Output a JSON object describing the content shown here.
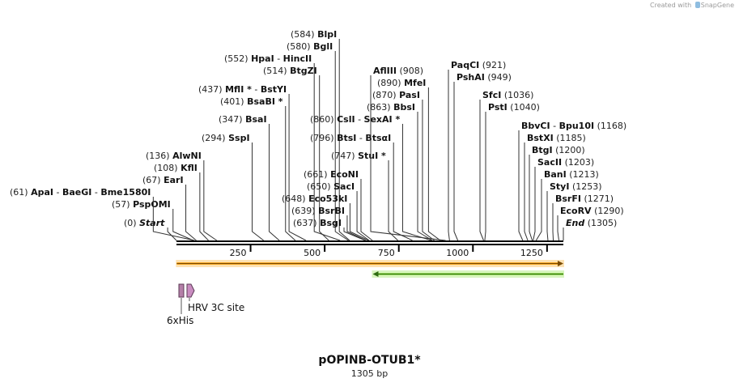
{
  "credit": {
    "prefix": "Created with",
    "brand": "SnapGene"
  },
  "plasmid": {
    "name": "pOPINB-OTUB1*",
    "size_label": "1305 bp",
    "length": 1305
  },
  "ruler": {
    "ticks": [
      250,
      500,
      750,
      1000,
      1250
    ]
  },
  "features": [
    {
      "name": "orange-arrow",
      "start": 1,
      "end": 1305,
      "direction": "forward",
      "color": "#f5a623",
      "outline": "#7a4a00"
    },
    {
      "name": "green-arrow",
      "start": 662,
      "end": 1305,
      "direction": "reverse",
      "color": "#9be05c",
      "outline": "#2f6b12"
    },
    {
      "name": "6xHis",
      "label": "6xHis",
      "start": 12,
      "end": 30,
      "color": "#b47fa8"
    },
    {
      "name": "hrv-3c",
      "label": "HRV 3C site",
      "start": 37,
      "end": 60,
      "color": "#c98cc0"
    }
  ],
  "sites": [
    {
      "pos": "(0)",
      "names": [
        "Start"
      ],
      "italic": true,
      "bp": 0
    },
    {
      "pos": "(57)",
      "names": [
        "PspOMI"
      ],
      "bp": 57
    },
    {
      "pos": "(61)",
      "names": [
        "ApaI",
        "BaeGI",
        "Bme1580I"
      ],
      "bp": 61
    },
    {
      "pos": "(67)",
      "names": [
        "EarI"
      ],
      "bp": 67
    },
    {
      "pos": "(108)",
      "names": [
        "KflI"
      ],
      "bp": 108
    },
    {
      "pos": "(136)",
      "names": [
        "AlwNI"
      ],
      "bp": 136
    },
    {
      "pos": "(294)",
      "names": [
        "SspI"
      ],
      "bp": 294
    },
    {
      "pos": "(347)",
      "names": [
        "BsaI"
      ],
      "bp": 347
    },
    {
      "pos": "(401)",
      "names": [
        "BsaBI *"
      ],
      "bp": 401
    },
    {
      "pos": "(437)",
      "names": [
        "MflI *",
        "BstYI"
      ],
      "bp": 437
    },
    {
      "pos": "(514)",
      "names": [
        "BtgZI"
      ],
      "bp": 514
    },
    {
      "pos": "(552)",
      "names": [
        "HpaI",
        "HincII"
      ],
      "bp": 552
    },
    {
      "pos": "(580)",
      "names": [
        "BglI"
      ],
      "bp": 580
    },
    {
      "pos": "(584)",
      "names": [
        "BlpI"
      ],
      "bp": 584
    },
    {
      "pos": "(637)",
      "names": [
        "BsgI"
      ],
      "bp": 637
    },
    {
      "pos": "(639)",
      "names": [
        "BsrBI"
      ],
      "bp": 639
    },
    {
      "pos": "(648)",
      "names": [
        "Eco53kI"
      ],
      "bp": 648
    },
    {
      "pos": "(650)",
      "names": [
        "SacI"
      ],
      "bp": 650
    },
    {
      "pos": "(661)",
      "names": [
        "EcoNI"
      ],
      "bp": 661
    },
    {
      "pos": "(747)",
      "names": [
        "StuI *"
      ],
      "bp": 747
    },
    {
      "pos": "(796)",
      "names": [
        "BtsI",
        "BtsαI"
      ],
      "bp": 796
    },
    {
      "pos": "(860)",
      "names": [
        "CslI",
        "SexAI *"
      ],
      "bp": 860
    },
    {
      "pos": "(863)",
      "names": [
        "BbsI"
      ],
      "bp": 863
    },
    {
      "pos": "(870)",
      "names": [
        "PasI"
      ],
      "bp": 870
    },
    {
      "pos": "(890)",
      "names": [
        "MfeI"
      ],
      "bp": 890
    },
    {
      "pos": "(908)",
      "names": [
        "AflIII"
      ],
      "bp": 908
    },
    {
      "pos": "(921)",
      "names": [
        "PaqCI"
      ],
      "bp": 921
    },
    {
      "pos": "(949)",
      "names": [
        "PshAI"
      ],
      "bp": 949
    },
    {
      "pos": "(1036)",
      "names": [
        "SfcI"
      ],
      "bp": 1036
    },
    {
      "pos": "(1040)",
      "names": [
        "PstI"
      ],
      "bp": 1040
    },
    {
      "pos": "(1168)",
      "names": [
        "BbvCI",
        "Bpu10I"
      ],
      "bp": 1168
    },
    {
      "pos": "(1185)",
      "names": [
        "BstXI"
      ],
      "bp": 1185
    },
    {
      "pos": "(1200)",
      "names": [
        "BtgI"
      ],
      "bp": 1200
    },
    {
      "pos": "(1203)",
      "names": [
        "SacII"
      ],
      "bp": 1203
    },
    {
      "pos": "(1213)",
      "names": [
        "BanI"
      ],
      "bp": 1213
    },
    {
      "pos": "(1253)",
      "names": [
        "StyI"
      ],
      "bp": 1253
    },
    {
      "pos": "(1271)",
      "names": [
        "BsrFI"
      ],
      "bp": 1271
    },
    {
      "pos": "(1290)",
      "names": [
        "EcoRV"
      ],
      "bp": 1290
    },
    {
      "pos": "(1305)",
      "names": [
        "End"
      ],
      "italic": true,
      "bp": 1305
    }
  ]
}
